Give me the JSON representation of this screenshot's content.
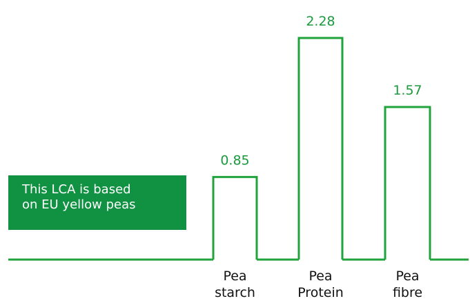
{
  "note": {
    "lines": [
      "This LCA is based",
      "on EU yellow peas"
    ]
  },
  "colors": {
    "line": "#1fa33a",
    "value_label": "#1a9a3c",
    "note_background": "#119142",
    "note_text": "#ffffff"
  },
  "chart_data": {
    "type": "bar",
    "style": "step-outline",
    "categories": [
      [
        "Pea",
        "starch"
      ],
      [
        "Pea",
        "Protein"
      ],
      [
        "Pea",
        "fibre"
      ]
    ],
    "values": [
      0.85,
      2.28,
      1.57
    ],
    "value_labels": [
      "0.85",
      "2.28",
      "1.57"
    ],
    "ylim": [
      0,
      2.28
    ],
    "grid": false,
    "axes_visible": false
  }
}
